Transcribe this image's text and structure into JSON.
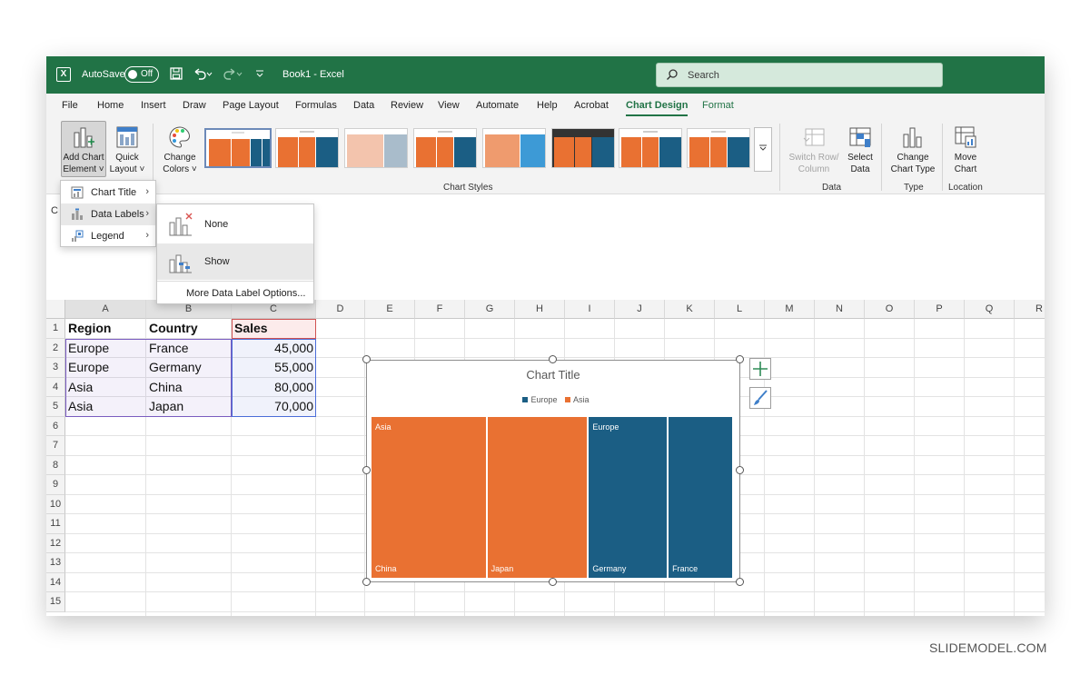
{
  "titlebar": {
    "autosave_label": "AutoSave",
    "autosave_state": "Off",
    "doc_title": "Book1  -  Excel",
    "search_placeholder": "Search"
  },
  "menu_tabs": [
    "File",
    "Home",
    "Insert",
    "Draw",
    "Page Layout",
    "Formulas",
    "Data",
    "Review",
    "View",
    "Automate",
    "Help",
    "Acrobat",
    "Chart Design",
    "Format"
  ],
  "active_tab": "Chart Design",
  "ribbon": {
    "add_chart_element": [
      "Add Chart",
      "Element ˅"
    ],
    "quick_layout": [
      "Quick",
      "Layout ˅"
    ],
    "change_colors": [
      "Change",
      "Colors ˅"
    ],
    "chart_styles_label": "Chart Styles",
    "switch_row_column": [
      "Switch Row/",
      "Column"
    ],
    "select_data": [
      "Select",
      "Data"
    ],
    "data_group_label": "Data",
    "change_chart_type": [
      "Change",
      "Chart Type"
    ],
    "type_group_label": "Type",
    "move_chart": [
      "Move",
      "Chart"
    ],
    "location_group_label": "Location"
  },
  "add_element_menu": {
    "items": [
      {
        "label": "Chart Title",
        "icon": "chart-title-icon"
      },
      {
        "label": "Data Labels",
        "icon": "data-labels-icon"
      },
      {
        "label": "Legend",
        "icon": "legend-icon"
      }
    ]
  },
  "data_labels_submenu": {
    "none_label": "None",
    "show_label": "Show",
    "more_label": "More Data Label Options..."
  },
  "namebox_stub": "C",
  "sheet": {
    "columns": [
      "A",
      "B",
      "C",
      "D",
      "E",
      "F",
      "G",
      "H",
      "I",
      "J",
      "K",
      "L",
      "M",
      "N",
      "O",
      "P",
      "Q",
      "R"
    ],
    "rows": [
      "1",
      "2",
      "3",
      "4",
      "5",
      "6",
      "7",
      "8",
      "9",
      "10",
      "11",
      "12",
      "13",
      "14",
      "15"
    ],
    "headers": [
      "Region",
      "Country",
      "Sales"
    ],
    "data": [
      [
        "Europe",
        "France",
        "45,000"
      ],
      [
        "Europe",
        "Germany",
        "55,000"
      ],
      [
        "Asia",
        "China",
        "80,000"
      ],
      [
        "Asia",
        "Japan",
        "70,000"
      ]
    ]
  },
  "chart_data": {
    "type": "treemap",
    "title": "Chart Title",
    "legend": [
      "Europe",
      "Asia"
    ],
    "legend_position": "top",
    "colors": {
      "Europe": "#1b5e84",
      "Asia": "#e97132"
    },
    "groups": [
      {
        "name": "Asia",
        "children": [
          {
            "name": "China",
            "value": 80000
          },
          {
            "name": "Japan",
            "value": 70000
          }
        ]
      },
      {
        "name": "Europe",
        "children": [
          {
            "name": "Germany",
            "value": 55000
          },
          {
            "name": "France",
            "value": 45000
          }
        ]
      }
    ]
  },
  "watermark": "SLIDEMODEL.COM",
  "colors": {
    "excel_green": "#217346",
    "asia_orange": "#e97132",
    "europe_blue": "#1b5e84"
  }
}
